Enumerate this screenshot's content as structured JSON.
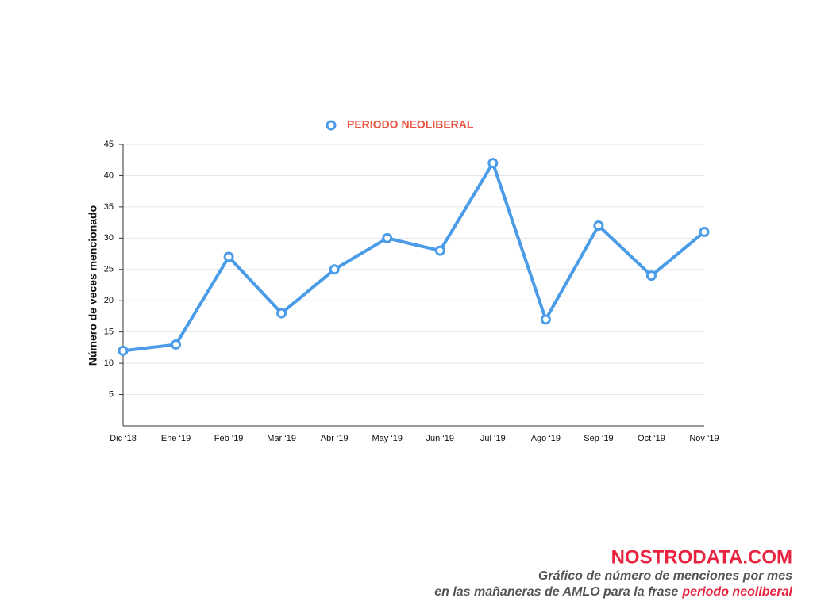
{
  "chart_data": {
    "type": "line",
    "categories": [
      "Dic ‘18",
      "Ene ‘19",
      "Feb ‘19",
      "Mar ‘19",
      "Abr ‘19",
      "May ‘19",
      "Jun ‘19",
      "Jul ‘19",
      "Ago ‘19",
      "Sep ‘19",
      "Oct ‘19",
      "Nov ‘19"
    ],
    "series": [
      {
        "name": "PERIODO NEOLIBERAL",
        "color": "#4a9be8",
        "values": [
          12,
          13,
          27,
          18,
          25,
          30,
          28,
          42,
          17,
          32,
          24,
          31
        ]
      }
    ],
    "y_label": "Número de veces mencionado",
    "ylim": [
      0,
      45
    ],
    "yticks": [
      5,
      10,
      15,
      20,
      25,
      30,
      35,
      40,
      45
    ],
    "grid": true,
    "legend_position": "top",
    "brand": "NOSTRODATA.COM",
    "caption_lines": [
      "Gráfico de número de menciones por mes",
      "en las mañaneras de AMLO para la frase"
    ],
    "caption_highlight": "periodo neoliberal"
  }
}
